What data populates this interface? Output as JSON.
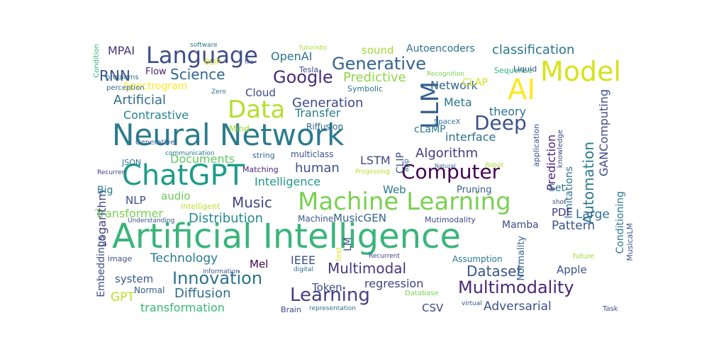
{
  "words": [
    {
      "text": "Artificial Intelligence",
      "color": "#3ab57a",
      "orient": "h"
    },
    {
      "text": "Neural Network",
      "color": "#2a7b8e",
      "orient": "h"
    },
    {
      "text": "Machine Learning",
      "color": "#79d151",
      "orient": "h"
    },
    {
      "text": "ChatGPT",
      "color": "#1e9b8a",
      "orient": "h"
    },
    {
      "text": "Language",
      "color": "#3d4d8a",
      "orient": "h"
    },
    {
      "text": "AI",
      "color": "#fde725",
      "orient": "h"
    },
    {
      "text": "Model",
      "color": "#d8e219",
      "orient": "h"
    },
    {
      "text": "Data",
      "color": "#b5de2b",
      "orient": "h"
    },
    {
      "text": "Deep",
      "color": "#3b528b",
      "orient": "h"
    },
    {
      "text": "Computer",
      "color": "#440154",
      "orient": "h"
    },
    {
      "text": "Multimodality",
      "color": "#482878",
      "orient": "h"
    },
    {
      "text": "Innovation",
      "color": "#2c728e",
      "orient": "h"
    },
    {
      "text": "Learning",
      "color": "#433e85",
      "orient": "h"
    },
    {
      "text": "Multimodal",
      "color": "#453781",
      "orient": "h"
    },
    {
      "text": "Generative",
      "color": "#33638d",
      "orient": "h"
    },
    {
      "text": "Google",
      "color": "#472d7b",
      "orient": "h"
    },
    {
      "text": "LLM",
      "color": "#34608d",
      "orient": "v"
    },
    {
      "text": "Automation",
      "color": "#2a788e",
      "orient": "v"
    },
    {
      "text": "GANComputing",
      "color": "#3e4a89",
      "orient": "v"
    },
    {
      "text": "Prediction",
      "color": "#482173",
      "orient": "v"
    },
    {
      "text": "classification",
      "color": "#2a768e",
      "orient": "h"
    },
    {
      "text": "Science",
      "color": "#31688e",
      "orient": "h"
    },
    {
      "text": "RNN",
      "color": "#3b528b",
      "orient": "h"
    },
    {
      "text": "Artificial",
      "color": "#2f6c8e",
      "orient": "h"
    },
    {
      "text": "Contrastive",
      "color": "#25838e",
      "orient": "h"
    },
    {
      "text": "Generation",
      "color": "#3e4989",
      "orient": "h"
    },
    {
      "text": "Predictive",
      "color": "#8fd744",
      "orient": "h"
    },
    {
      "text": "Algorithm",
      "color": "#443a83",
      "orient": "h"
    },
    {
      "text": "Documents",
      "color": "#5ec962",
      "orient": "h"
    },
    {
      "text": "human",
      "color": "#3b528b",
      "orient": "h"
    },
    {
      "text": "LSTM",
      "color": "#3f4788",
      "orient": "h"
    },
    {
      "text": "Music",
      "color": "#404688",
      "orient": "h"
    },
    {
      "text": "Distribution",
      "color": "#228c8d",
      "orient": "h"
    },
    {
      "text": "Dataset",
      "color": "#3a548c",
      "orient": "h"
    },
    {
      "text": "Diffusion",
      "color": "#2f6b8e",
      "orient": "h"
    },
    {
      "text": "Technology",
      "color": "#297a8e",
      "orient": "h"
    },
    {
      "text": "Intelligence",
      "color": "#1f988b",
      "orient": "h"
    },
    {
      "text": "Transformer",
      "color": "#7ad151",
      "orient": "h"
    },
    {
      "text": "Transfer",
      "color": "#277f8e",
      "orient": "h"
    },
    {
      "text": "Meta",
      "color": "#2b758e",
      "orient": "h"
    },
    {
      "text": "Network",
      "color": "#31678e",
      "orient": "h"
    },
    {
      "text": "theory",
      "color": "#2c718e",
      "orient": "h"
    },
    {
      "text": "interface",
      "color": "#2d708e",
      "orient": "h"
    },
    {
      "text": "Adversarial",
      "color": "#3b528b",
      "orient": "h"
    },
    {
      "text": "regression",
      "color": "#424086",
      "orient": "h"
    },
    {
      "text": "Token",
      "color": "#3c4f8a",
      "orient": "h"
    },
    {
      "text": "system",
      "color": "#38598c",
      "orient": "h"
    },
    {
      "text": "transformation",
      "color": "#35b779",
      "orient": "h"
    },
    {
      "text": "GPT",
      "color": "#b8de29",
      "orient": "h"
    },
    {
      "text": "Large",
      "color": "#2e6e8e",
      "orient": "h"
    },
    {
      "text": "Pattern",
      "color": "#3a548c",
      "orient": "h"
    },
    {
      "text": "Mamba",
      "color": "#3e4a89",
      "orient": "h"
    },
    {
      "text": "MusicGEN",
      "color": "#33638d",
      "orient": "h"
    },
    {
      "text": "Cloud",
      "color": "#3e4989",
      "orient": "h"
    },
    {
      "text": "Logarithm",
      "color": "#424186",
      "orient": "v"
    },
    {
      "text": "Conditioning",
      "color": "#2a788e",
      "orient": "v"
    },
    {
      "text": "limitations",
      "color": "#2d708e",
      "orient": "v"
    },
    {
      "text": "Embeddings",
      "color": "#3c4f8a",
      "orient": "v"
    },
    {
      "text": "CLIP",
      "color": "#3d4e8a",
      "orient": "v"
    },
    {
      "text": "LM",
      "color": "#3f4889",
      "orient": "v"
    },
    {
      "text": "OpenAI",
      "color": "#2d718e",
      "orient": "h"
    },
    {
      "text": "sound",
      "color": "#a0da39",
      "orient": "h"
    },
    {
      "text": "Autoencoders",
      "color": "#2c718e",
      "orient": "h"
    },
    {
      "text": "MPAI",
      "color": "#46327e",
      "orient": "h"
    },
    {
      "text": "Flow",
      "color": "#482576",
      "orient": "h"
    },
    {
      "text": "Tesla",
      "color": "#3f4788",
      "orient": "h"
    },
    {
      "text": "CLAP",
      "color": "#d0e11c",
      "orient": "h"
    },
    {
      "text": "Liquid",
      "color": "#3e4989",
      "orient": "h"
    },
    {
      "text": "Sequence",
      "color": "#2fb47c",
      "orient": "h"
    },
    {
      "text": "Symbolic",
      "color": "#2c728e",
      "orient": "h"
    },
    {
      "text": "Riffusion",
      "color": "#33638d",
      "orient": "h"
    },
    {
      "text": "cLaMP",
      "color": "#2a788e",
      "orient": "h"
    },
    {
      "text": "SpaceX",
      "color": "#2e6e8e",
      "orient": "h"
    },
    {
      "text": "Mind",
      "color": "#a0da39",
      "orient": "h"
    },
    {
      "text": "audio",
      "color": "#6ccd5a",
      "orient": "h"
    },
    {
      "text": "NLP",
      "color": "#3e4a89",
      "orient": "h"
    },
    {
      "text": "Big",
      "color": "#297a8e",
      "orient": "h"
    },
    {
      "text": "JSON",
      "color": "#2c728e",
      "orient": "h"
    },
    {
      "text": "Matching",
      "color": "#482475",
      "orient": "h"
    },
    {
      "text": "string",
      "color": "#31688e",
      "orient": "h"
    },
    {
      "text": "multiclass",
      "color": "#3b528b",
      "orient": "h"
    },
    {
      "text": "Web",
      "color": "#2a788e",
      "orient": "h"
    },
    {
      "text": "Pruning",
      "color": "#34608d",
      "orient": "h"
    },
    {
      "text": "Set",
      "color": "#2e6f8e",
      "orient": "h"
    },
    {
      "text": "PDF",
      "color": "#443983",
      "orient": "h"
    },
    {
      "text": "Apple",
      "color": "#3b528b",
      "orient": "h"
    },
    {
      "text": "CSV",
      "color": "#3e4989",
      "orient": "h"
    },
    {
      "text": "Mel",
      "color": "#440154",
      "orient": "h"
    },
    {
      "text": "IEEE",
      "color": "#3b528b",
      "orient": "h"
    },
    {
      "text": "Machine",
      "color": "#38598c",
      "orient": "h"
    },
    {
      "text": "Assumption",
      "color": "#2a788e",
      "orient": "h"
    },
    {
      "text": "Normal",
      "color": "#35608d",
      "orient": "h"
    },
    {
      "text": "image",
      "color": "#3b528b",
      "orient": "h"
    },
    {
      "text": "Brain",
      "color": "#3f4788",
      "orient": "h"
    },
    {
      "text": "Spectrogram",
      "color": "#fde725",
      "orient": "h"
    },
    {
      "text": "perception",
      "color": "#31688e",
      "orient": "h"
    },
    {
      "text": "problems",
      "color": "#2c728e",
      "orient": "h"
    },
    {
      "text": "BLIP",
      "color": "#d5e21a",
      "orient": "h"
    },
    {
      "text": "software",
      "color": "#2a788e",
      "orient": "h"
    },
    {
      "text": "file",
      "color": "#3e4989",
      "orient": "h"
    },
    {
      "text": "futuristic",
      "color": "#a8db34",
      "orient": "h"
    },
    {
      "text": "Recognition",
      "color": "#7ad151",
      "orient": "h"
    },
    {
      "text": "Zero",
      "color": "#2d708e",
      "orient": "h"
    },
    {
      "text": "Generativel",
      "color": "#33638d",
      "orient": "h"
    },
    {
      "text": "Recurren",
      "color": "#424086",
      "orient": "h"
    },
    {
      "text": "communication",
      "color": "#2a788e",
      "orient": "h"
    },
    {
      "text": "intelligent",
      "color": "#bddf26",
      "orient": "h"
    },
    {
      "text": "Understanding",
      "color": "#3b528b",
      "orient": "h"
    },
    {
      "text": "Progessing",
      "color": "#b8de29",
      "orient": "h"
    },
    {
      "text": "Natural",
      "color": "#31688e",
      "orient": "h"
    },
    {
      "text": "Robot",
      "color": "#a8db34",
      "orient": "h"
    },
    {
      "text": "Mutimodality",
      "color": "#3e4989",
      "orient": "h"
    },
    {
      "text": "Recurrent",
      "color": "#424086",
      "orient": "h"
    },
    {
      "text": "information",
      "color": "#3b528b",
      "orient": "h"
    },
    {
      "text": "digital",
      "color": "#2c718e",
      "orient": "h"
    },
    {
      "text": "Database",
      "color": "#7ad151",
      "orient": "h"
    },
    {
      "text": "representation",
      "color": "#2d708e",
      "orient": "h"
    },
    {
      "text": "virtual",
      "color": "#3b528b",
      "orient": "h"
    },
    {
      "text": "Task",
      "color": "#3b528b",
      "orient": "h"
    },
    {
      "text": "future",
      "color": "#a0da39",
      "orient": "h"
    },
    {
      "text": "shot",
      "color": "#3e4989",
      "orient": "h"
    },
    {
      "text": "MusicaLM",
      "color": "#3b528b",
      "orient": "v"
    },
    {
      "text": "Normality",
      "color": "#34608d",
      "orient": "v"
    },
    {
      "text": "application",
      "color": "#3b528b",
      "orient": "v"
    },
    {
      "text": "knowledge",
      "color": "#3e4989",
      "orient": "v"
    },
    {
      "text": "app",
      "color": "#2c728e",
      "orient": "v"
    },
    {
      "text": "text",
      "color": "#d8e219",
      "orient": "v"
    },
    {
      "text": "Condition",
      "color": "#35b779",
      "orient": "v"
    }
  ]
}
